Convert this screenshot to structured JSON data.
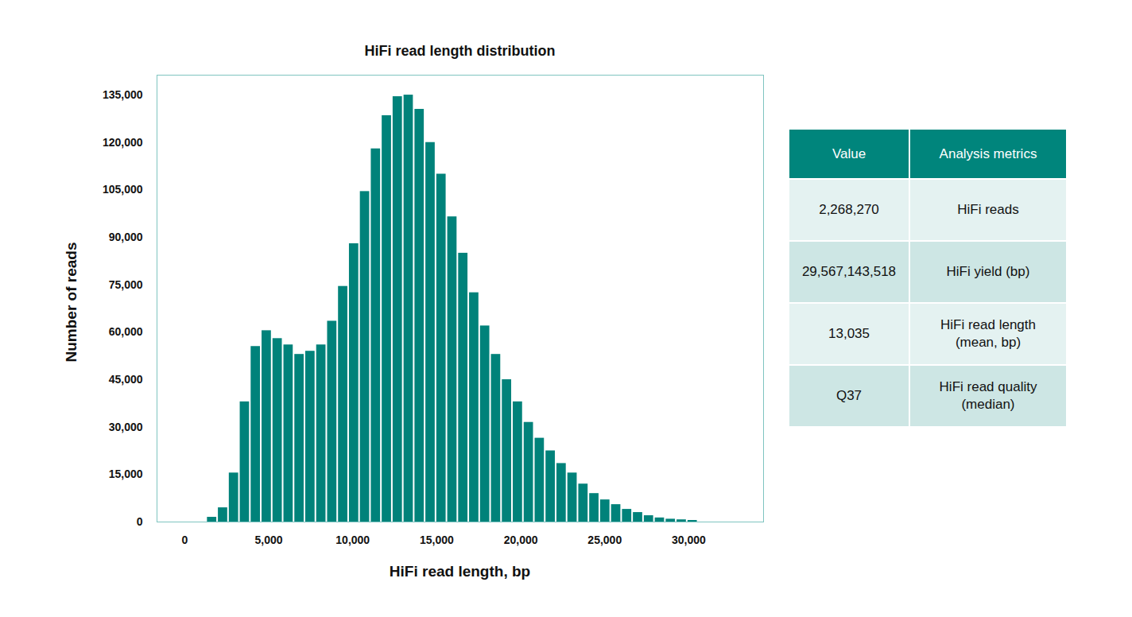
{
  "chart_data": {
    "type": "histogram",
    "title": "HiFi read length distribution",
    "x_label": "HiFi read length, bp",
    "y_label": "Number of reads",
    "bins": [
      1300,
      1950,
      2600,
      3250,
      3900,
      4550,
      5200,
      5850,
      6500,
      7150,
      7800,
      8450,
      9100,
      9750,
      10400,
      11050,
      11700,
      12350,
      13000,
      13650,
      14300,
      14950,
      15600,
      16250,
      16900,
      17550,
      18200,
      18850,
      19500,
      20150,
      20800,
      21450,
      22100,
      22750,
      23400,
      24050,
      24700,
      25350,
      26000,
      26650,
      27300,
      27950,
      28600,
      29250,
      29900,
      30550
    ],
    "values": [
      1500,
      4500,
      15500,
      38000,
      55500,
      60500,
      58000,
      56000,
      53000,
      54000,
      56000,
      63500,
      74500,
      88000,
      104500,
      118000,
      128500,
      134500,
      135000,
      130500,
      120000,
      110000,
      96500,
      85000,
      72500,
      62000,
      53000,
      45000,
      38000,
      31500,
      26500,
      22500,
      18500,
      15500,
      12000,
      9000,
      7000,
      5500,
      4000,
      3000,
      2000,
      1300,
      900,
      700,
      500
    ],
    "color": "#00827a",
    "xlim": [
      -1650,
      34450
    ],
    "ylim": [
      0,
      141300
    ],
    "xticks": [
      0,
      {
        "value": 5000,
        "label": "5,000"
      },
      {
        "value": 10000,
        "label": "10,000"
      },
      {
        "value": 15000,
        "label": "15,000"
      },
      {
        "value": 20000,
        "label": "20,000"
      },
      {
        "value": 25000,
        "label": "25,000"
      },
      {
        "value": 30000,
        "label": "30,000"
      }
    ],
    "yticks": [
      0,
      {
        "value": 15000,
        "label": "15,000"
      },
      {
        "value": 30000,
        "label": "30,000"
      },
      {
        "value": 45000,
        "label": "45,000"
      },
      {
        "value": 60000,
        "label": "60,000"
      },
      {
        "value": 75000,
        "label": "75,000"
      },
      {
        "value": 90000,
        "label": "90,000"
      },
      {
        "value": 105000,
        "label": "105,000"
      },
      {
        "value": 120000,
        "label": "120,000"
      },
      {
        "value": 135000,
        "label": "135,000"
      }
    ],
    "grid": false
  },
  "table": {
    "header": [
      "Value",
      "Analysis metrics"
    ],
    "rows": [
      [
        "2,268,270",
        "HiFi reads"
      ],
      [
        "29,567,143,518",
        "HiFi yield (bp)"
      ],
      [
        "13,035",
        "HiFi read length\n(mean, bp)"
      ],
      [
        "Q37",
        "HiFi read quality\n(median)"
      ]
    ]
  }
}
